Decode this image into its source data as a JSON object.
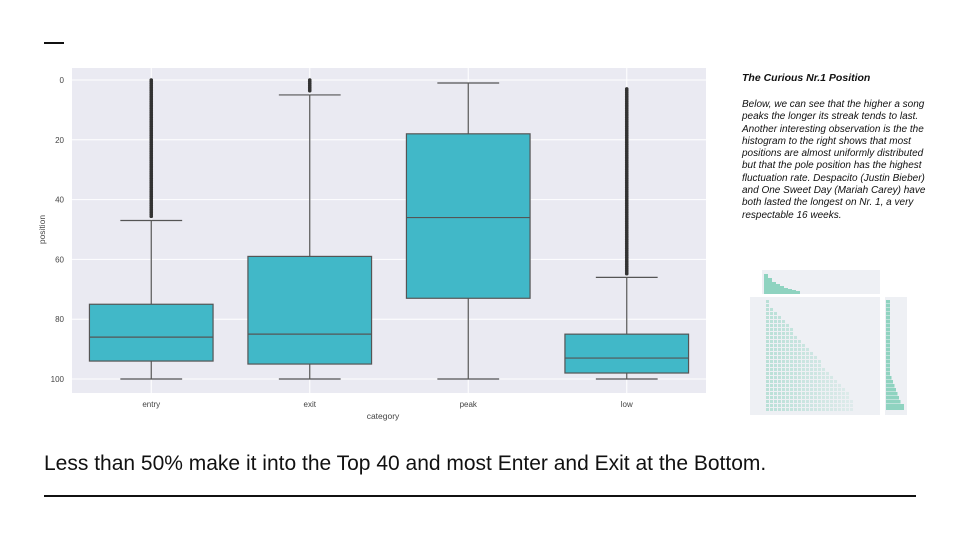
{
  "chart_data": [
    {
      "type": "box",
      "xlabel": "category",
      "ylabel": "position",
      "y_axis_inverted": true,
      "ylim": [
        0,
        100
      ],
      "yticks": [
        0,
        20,
        40,
        60,
        80,
        100
      ],
      "grid": true,
      "box_color": "#41b8c8",
      "background_color": "#eaeaf2",
      "categories": [
        "entry",
        "exit",
        "peak",
        "low"
      ],
      "boxes": [
        {
          "category": "entry",
          "whisker_low": 47,
          "q1": 75,
          "median": 86,
          "q3": 94,
          "whisker_high": 100,
          "outliers_range": [
            0,
            46
          ]
        },
        {
          "category": "exit",
          "whisker_low": 5,
          "q1": 59,
          "median": 85,
          "q3": 95,
          "whisker_high": 100,
          "outliers_range": [
            0,
            4
          ]
        },
        {
          "category": "peak",
          "whisker_low": 1,
          "q1": 18,
          "median": 46,
          "q3": 73,
          "whisker_high": 100,
          "outliers_range": []
        },
        {
          "category": "low",
          "whisker_low": 66,
          "q1": 85,
          "median": 93,
          "q3": 98,
          "whisker_high": 100,
          "outliers_range": [
            3,
            65
          ]
        }
      ]
    },
    {
      "type": "jointplot",
      "color": "#8fd3c0",
      "description_note": "small joint scatter with marginal histograms"
    }
  ],
  "side": {
    "title": "The Curious Nr.1 Position",
    "body": "Below, we can see that the higher a song peaks the longer its streak tends to last. Another interesting observation is the the histogram to the right shows that most positions are almost uniformly distributed but that the pole position has the highest fluctuation rate. Despacito (Justin Bieber)  and One Sweet Day (Mariah Carey)  have both lasted the longest on Nr. 1, a  very respectable 16 weeks."
  },
  "headline": "Less than 50% make it into the Top 40 and most Enter and Exit at the Bottom."
}
